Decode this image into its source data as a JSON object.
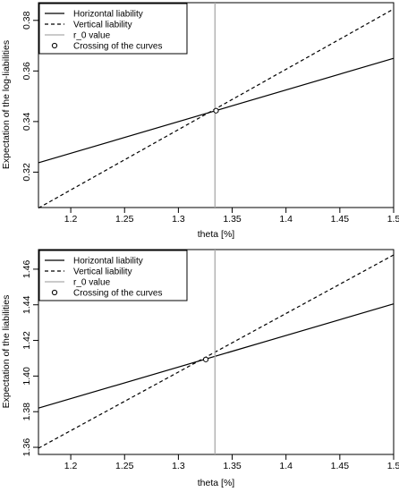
{
  "chart_data": [
    {
      "type": "line",
      "title": "",
      "xlabel": "theta [%]",
      "ylabel": "Expectation of the log-liabilities",
      "xlim": [
        1.17,
        1.5
      ],
      "ylim": [
        0.306,
        0.387
      ],
      "xticks": [
        "1.2",
        "1.25",
        "1.3",
        "1.35",
        "1.4",
        "1.45",
        "1.5"
      ],
      "yticks": [
        "0.32",
        "0.34",
        "0.36",
        "0.38"
      ],
      "legend_position": "top-left",
      "legend": [
        "Horizontal liability",
        "Vertical liability",
        "r_0 value",
        "Crossing of the curves"
      ],
      "series": [
        {
          "name": "Horizontal liability",
          "style": "solid",
          "color": "#000000",
          "x": [
            1.17,
            1.5
          ],
          "y": [
            0.3237,
            0.365
          ]
        },
        {
          "name": "Vertical liability",
          "style": "dashed",
          "color": "#000000",
          "x": [
            1.17,
            1.5
          ],
          "y": [
            0.3058,
            0.3845
          ]
        },
        {
          "name": "r_0 value",
          "style": "vertical",
          "color": "#aaaaaa",
          "x": [
            1.334
          ]
        },
        {
          "name": "Crossing of the curves",
          "style": "point",
          "color": "#000000",
          "x": [
            1.335
          ],
          "y": [
            0.3443
          ]
        }
      ]
    },
    {
      "type": "line",
      "title": "",
      "xlabel": "theta [%]",
      "ylabel": "Expectation of the liabilities",
      "xlim": [
        1.17,
        1.5
      ],
      "ylim": [
        1.356,
        1.471
      ],
      "xticks": [
        "1.2",
        "1.25",
        "1.3",
        "1.35",
        "1.4",
        "1.45",
        "1.5"
      ],
      "yticks": [
        "1.36",
        "1.38",
        "1.40",
        "1.42",
        "1.44",
        "1.46"
      ],
      "legend_position": "top-left",
      "legend": [
        "Horizontal liability",
        "Vertical liability",
        "r_0 value",
        "Crossing of the curves"
      ],
      "series": [
        {
          "name": "Horizontal liability",
          "style": "solid",
          "color": "#000000",
          "x": [
            1.17,
            1.5
          ],
          "y": [
            1.382,
            1.4405
          ]
        },
        {
          "name": "Vertical liability",
          "style": "dashed",
          "color": "#000000",
          "x": [
            1.17,
            1.5
          ],
          "y": [
            1.3595,
            1.468
          ]
        },
        {
          "name": "r_0 value",
          "style": "vertical",
          "color": "#aaaaaa",
          "x": [
            1.334
          ]
        },
        {
          "name": "Crossing of the curves",
          "style": "point",
          "color": "#000000",
          "x": [
            1.3255
          ],
          "y": [
            1.4093
          ]
        }
      ]
    }
  ]
}
